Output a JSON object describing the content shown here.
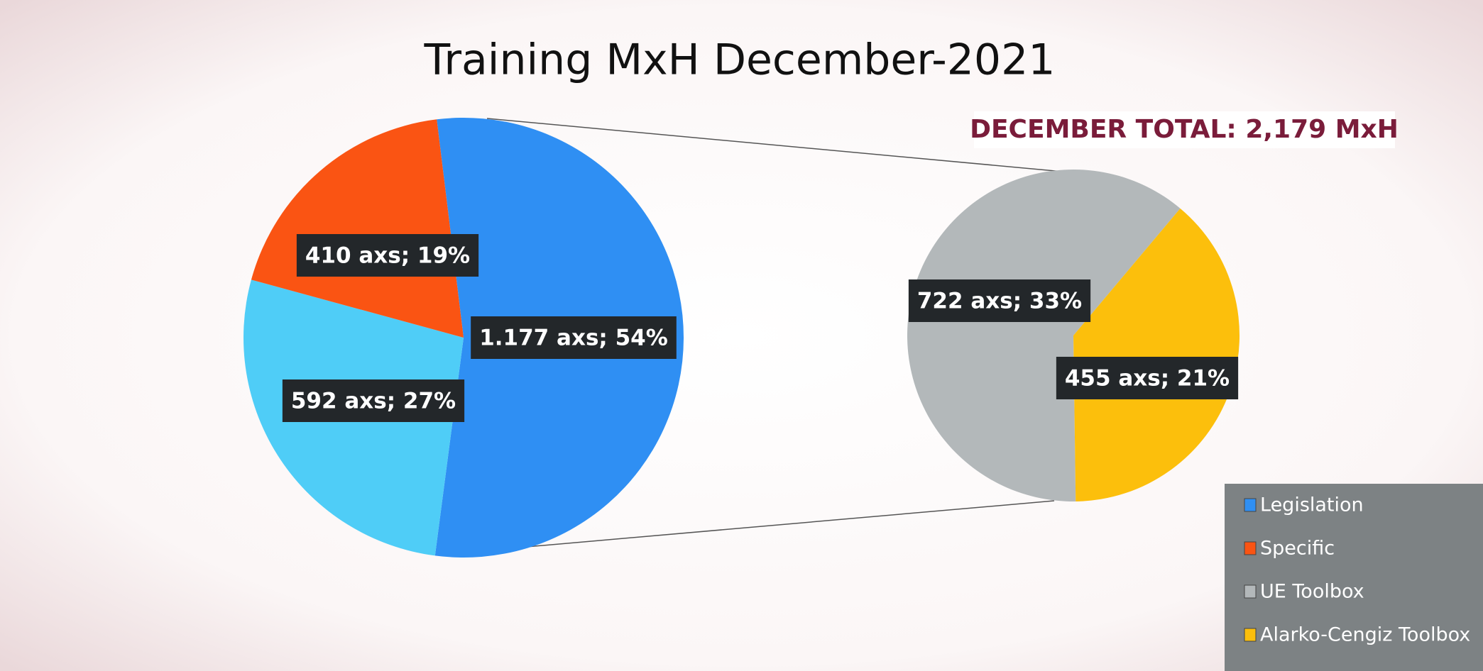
{
  "chart_data": {
    "type": "pie-of-pie",
    "title": "Training MxH December-2021",
    "annotation": "DECEMBER TOTAL: 2,179 MxH",
    "main": {
      "values": [
        1177,
        592,
        410
      ],
      "value_labels": [
        "1.177 axs; 54%",
        "592 axs; 27%",
        "410 axs; 19%"
      ],
      "colors": [
        "#2f8ff3",
        "#4fcdf7",
        "#fa5413"
      ]
    },
    "secondary": {
      "values": [
        722,
        455
      ],
      "value_labels": [
        "722 axs; 33%",
        "455 axs; 21%"
      ],
      "colors": [
        "#b3b8ba",
        "#fcbf0c"
      ]
    },
    "legend": {
      "position": "bottom-right",
      "entries": [
        {
          "name": "Legislation",
          "color": "#2f8ff3"
        },
        {
          "name": "Specific",
          "color": "#fa5413"
        },
        {
          "name": "UE Toolbox",
          "color": "#b3b8ba"
        },
        {
          "name": "Alarko-Cengiz Toolbox",
          "color": "#fcbf0c"
        }
      ]
    }
  }
}
